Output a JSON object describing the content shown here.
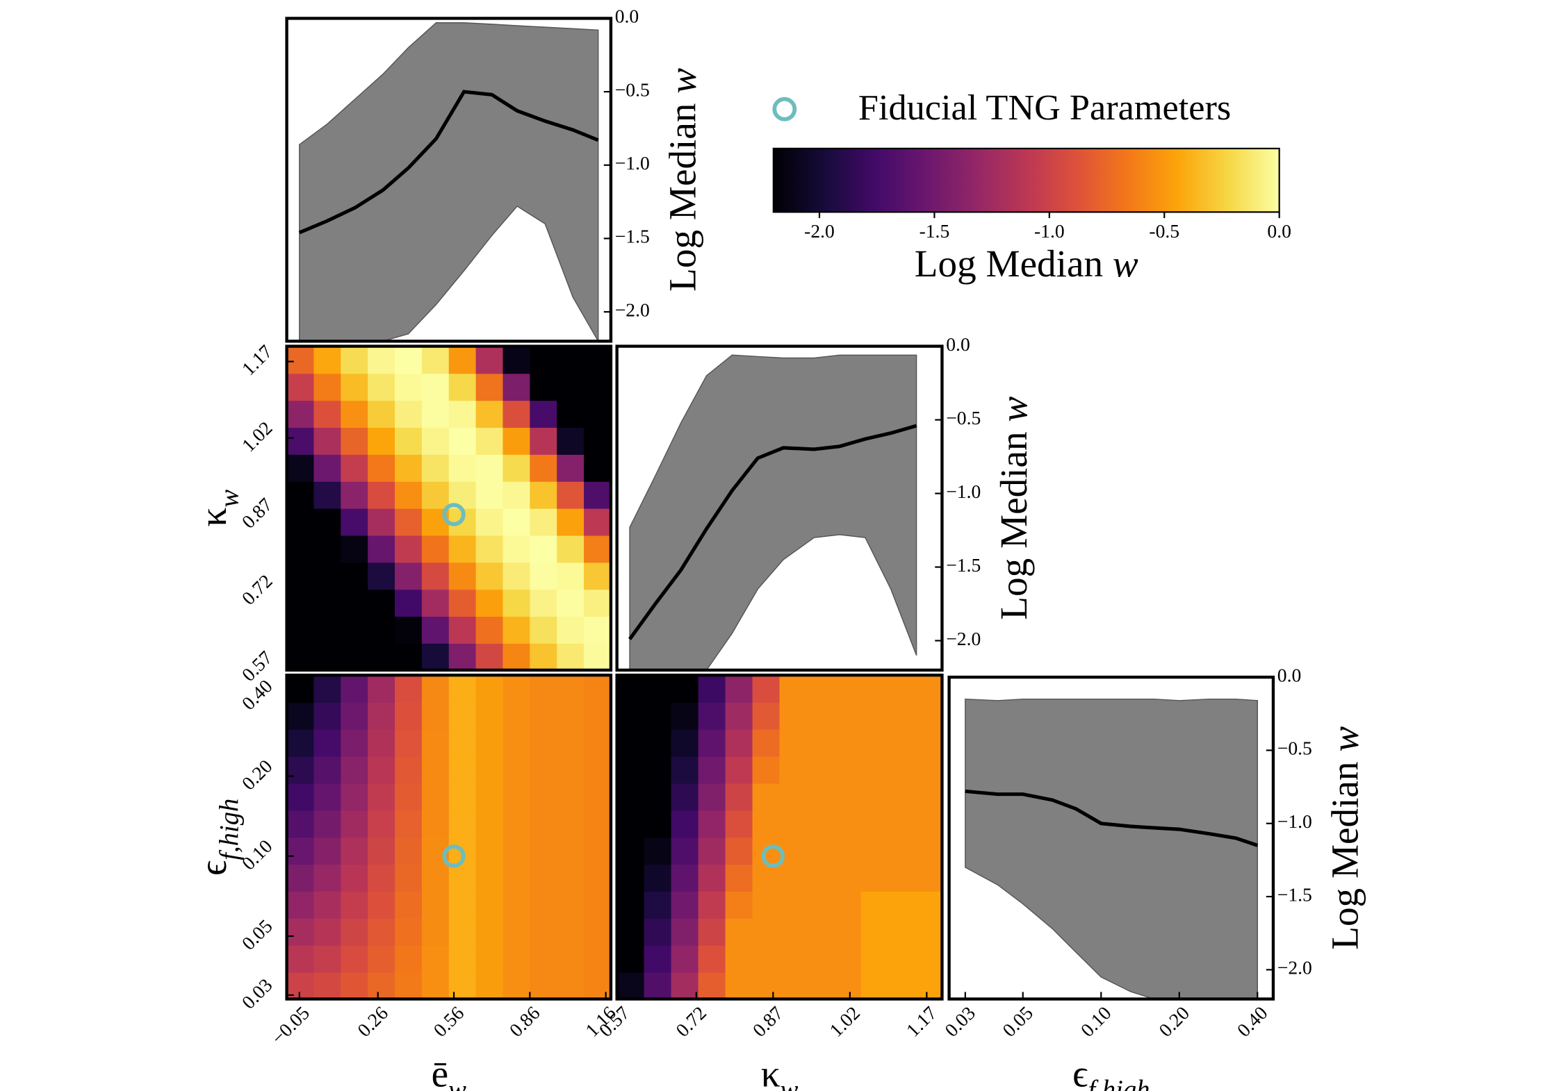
{
  "chart_data": [
    {
      "type": "line",
      "x": [
        -0.05,
        0.06,
        0.17,
        0.28,
        0.38,
        0.49,
        0.6,
        0.71,
        0.81,
        0.92,
        1.03,
        1.13
      ],
      "median": [
        -1.46,
        -1.38,
        -1.29,
        -1.17,
        -1.02,
        -0.82,
        -0.5,
        -0.52,
        -0.63,
        -0.7,
        -0.76,
        -0.83
      ],
      "upper": [
        -0.86,
        -0.72,
        -0.55,
        -0.38,
        -0.2,
        -0.03,
        -0.03,
        -0.04,
        -0.05,
        -0.06,
        -0.07,
        -0.08
      ],
      "lower": [
        -2.2,
        -2.2,
        -2.2,
        -2.2,
        -2.15,
        -1.95,
        -1.72,
        -1.48,
        -1.28,
        -1.4,
        -1.9,
        -2.2
      ],
      "xlim": [
        -0.1,
        1.18
      ],
      "ylim": [
        -2.2,
        0
      ],
      "yticks": [
        {
          "value": 0,
          "label": "0.0"
        },
        {
          "value": -0.5,
          "label": "−0.5"
        },
        {
          "value": -1,
          "label": "−1.0"
        },
        {
          "value": -1.5,
          "label": "−1.5"
        },
        {
          "value": -2,
          "label": "−2.0"
        }
      ],
      "ylabel": "Log Median w",
      "line_color": "#000000",
      "band_color": "#808080"
    },
    {
      "type": "heatmap",
      "cmap": "inferno",
      "xlim": [
        -0.1,
        1.18
      ],
      "ylim": [
        0.565,
        1.2
      ],
      "yticks": [
        0.57,
        0.72,
        0.87,
        1.02,
        1.17
      ],
      "ylabel": "κw",
      "z": [
        [
          -2.2,
          -2.2,
          -2.2,
          -2.2,
          -2.2,
          -1.98,
          -1.43,
          -0.96,
          -0.59,
          -0.31,
          -0.12,
          -0.02
        ],
        [
          -2.2,
          -2.2,
          -2.2,
          -2.2,
          -2.17,
          -1.59,
          -1.1,
          -0.7,
          -0.38,
          -0.17,
          -0.04,
          -0.01
        ],
        [
          -2.2,
          -2.2,
          -2.2,
          -2.2,
          -1.76,
          -1.24,
          -0.81,
          -0.47,
          -0.22,
          -0.07,
          -0.01,
          -0.08
        ],
        [
          -2.2,
          -2.2,
          -2.2,
          -1.95,
          -1.4,
          -0.94,
          -0.57,
          -0.29,
          -0.11,
          -0.01,
          -0.03,
          -0.29
        ],
        [
          -2.2,
          -2.2,
          -2.14,
          -1.56,
          -1.07,
          -0.68,
          -0.37,
          -0.16,
          -0.03,
          0,
          -0.18,
          -0.63
        ],
        [
          -2.2,
          -2.2,
          -1.73,
          -1.22,
          -0.79,
          -0.46,
          -0.22,
          -0.06,
          0,
          -0.09,
          -0.46,
          -1.09
        ],
        [
          -2.2,
          -1.92,
          -1.37,
          -0.92,
          -0.55,
          -0.28,
          -0.1,
          -0.01,
          -0.04,
          -0.31,
          -0.86,
          -1.69
        ],
        [
          -2.11,
          -1.53,
          -1.05,
          -0.66,
          -0.36,
          -0.15,
          -0.03,
          -0.01,
          -0.2,
          -0.66,
          -1.4,
          -2.2
        ],
        [
          -1.71,
          -1.19,
          -0.77,
          -0.44,
          -0.2,
          -0.06,
          0,
          -0.11,
          -0.48,
          -1.13,
          -2.06,
          -2.2
        ],
        [
          -1.35,
          -0.89,
          -0.54,
          -0.27,
          -0.09,
          -0.01,
          -0.04,
          -0.33,
          -0.9,
          -1.73,
          -2.2,
          -2.2
        ],
        [
          -1.03,
          -0.64,
          -0.34,
          -0.14,
          -0.03,
          -0.01,
          -0.21,
          -0.69,
          -1.44,
          -2.2,
          -2.2,
          -2.2
        ],
        [
          -0.75,
          -0.43,
          -0.19,
          -0.05,
          0,
          -0.12,
          -0.51,
          -1.18,
          -2.12,
          -2.2,
          -2.2,
          -2.2
        ]
      ],
      "fiducial": [
        0.56,
        0.87
      ]
    },
    {
      "type": "line",
      "x": [
        0.59,
        0.64,
        0.69,
        0.74,
        0.79,
        0.84,
        0.89,
        0.95,
        1.0,
        1.05,
        1.1,
        1.15
      ],
      "median": [
        -1.99,
        -1.75,
        -1.52,
        -1.24,
        -0.98,
        -0.76,
        -0.69,
        -0.7,
        -0.68,
        -0.63,
        -0.59,
        -0.54
      ],
      "upper": [
        -1.23,
        -0.88,
        -0.52,
        -0.2,
        -0.06,
        -0.07,
        -0.08,
        -0.08,
        -0.06,
        -0.06,
        -0.06,
        -0.06
      ],
      "lower": [
        -2.2,
        -2.2,
        -2.2,
        -2.2,
        -1.95,
        -1.65,
        -1.45,
        -1.3,
        -1.28,
        -1.3,
        -1.65,
        -2.1
      ],
      "xlim": [
        0.565,
        1.2
      ],
      "ylim": [
        -2.2,
        0
      ],
      "yticks": [
        {
          "value": 0,
          "label": "0.0"
        },
        {
          "value": -0.5,
          "label": "−0.5"
        },
        {
          "value": -1,
          "label": "−1.0"
        },
        {
          "value": -1.5,
          "label": "−1.5"
        },
        {
          "value": -2,
          "label": "−2.0"
        }
      ],
      "ylabel": "Log Median w",
      "line_color": "#000000",
      "band_color": "#808080"
    },
    {
      "type": "heatmap",
      "cmap": "inferno",
      "xlim": [
        -0.1,
        1.18
      ],
      "ylim": [
        0.029,
        0.48
      ],
      "yscale": "log",
      "xticks": [
        {
          "value": -0.05,
          "label": "−0.05"
        },
        0.26,
        0.56,
        0.86,
        1.16
      ],
      "yticks": [
        0.03,
        0.05,
        {
          "value": 0.1,
          "label": "0.10"
        },
        {
          "value": 0.2,
          "label": "0.20"
        },
        {
          "value": 0.4,
          "label": "0.40"
        }
      ],
      "xlabel": "ēw",
      "ylabel": "ϵf,high",
      "z": [
        [
          -1.0,
          -0.95,
          -0.85,
          -0.75,
          -0.65,
          -0.55,
          -0.4,
          -0.48,
          -0.55,
          -0.58,
          -0.58,
          -0.6
        ],
        [
          -1.11,
          -1.04,
          -0.92,
          -0.8,
          -0.67,
          -0.55,
          -0.4,
          -0.48,
          -0.55,
          -0.58,
          -0.58,
          -0.6
        ],
        [
          -1.22,
          -1.13,
          -0.98,
          -0.84,
          -0.7,
          -0.56,
          -0.4,
          -0.48,
          -0.55,
          -0.58,
          -0.58,
          -0.6
        ],
        [
          -1.33,
          -1.21,
          -1.05,
          -0.89,
          -0.72,
          -0.56,
          -0.4,
          -0.48,
          -0.55,
          -0.58,
          -0.58,
          -0.6
        ],
        [
          -1.44,
          -1.3,
          -1.12,
          -0.93,
          -0.75,
          -0.56,
          -0.4,
          -0.48,
          -0.55,
          -0.58,
          -0.58,
          -0.6
        ],
        [
          -1.55,
          -1.39,
          -1.18,
          -0.98,
          -0.77,
          -0.56,
          -0.4,
          -0.48,
          -0.55,
          -0.58,
          -0.58,
          -0.6
        ],
        [
          -1.66,
          -1.48,
          -1.25,
          -1.02,
          -0.79,
          -0.57,
          -0.4,
          -0.48,
          -0.55,
          -0.58,
          -0.58,
          -0.6
        ],
        [
          -1.77,
          -1.57,
          -1.32,
          -1.07,
          -0.82,
          -0.57,
          -0.4,
          -0.48,
          -0.55,
          -0.58,
          -0.58,
          -0.6
        ],
        [
          -1.87,
          -1.65,
          -1.38,
          -1.11,
          -0.84,
          -0.57,
          -0.4,
          -0.48,
          -0.55,
          -0.58,
          -0.58,
          -0.6
        ],
        [
          -1.98,
          -1.74,
          -1.45,
          -1.16,
          -0.87,
          -0.57,
          -0.4,
          -0.48,
          -0.55,
          -0.58,
          -0.58,
          -0.6
        ],
        [
          -2.09,
          -1.83,
          -1.52,
          -1.2,
          -0.89,
          -0.58,
          -0.4,
          -0.48,
          -0.55,
          -0.58,
          -0.58,
          -0.6
        ],
        [
          -2.2,
          -1.92,
          -1.58,
          -1.25,
          -0.91,
          -0.58,
          -0.4,
          -0.48,
          -0.55,
          -0.58,
          -0.58,
          -0.6
        ]
      ],
      "fiducial": [
        0.56,
        0.1
      ]
    },
    {
      "type": "heatmap",
      "cmap": "inferno",
      "xlim": [
        0.565,
        1.2
      ],
      "ylim": [
        0.029,
        0.48
      ],
      "yscale": "log",
      "xticks": [
        0.57,
        0.72,
        0.87,
        1.02,
        1.17
      ],
      "xlabel": "κw",
      "z": [
        [
          -2.11,
          -1.67,
          -1.23,
          -0.8,
          -0.55,
          -0.55,
          -0.55,
          -0.55,
          -0.55,
          -0.45,
          -0.45,
          -0.45
        ],
        [
          -2.2,
          -1.76,
          -1.33,
          -0.89,
          -0.55,
          -0.55,
          -0.55,
          -0.55,
          -0.55,
          -0.45,
          -0.45,
          -0.45
        ],
        [
          -2.2,
          -1.85,
          -1.42,
          -0.99,
          -0.55,
          -0.55,
          -0.55,
          -0.55,
          -0.55,
          -0.45,
          -0.45,
          -0.45
        ],
        [
          -2.2,
          -1.94,
          -1.51,
          -1.07,
          -0.63,
          -0.55,
          -0.55,
          -0.55,
          -0.55,
          -0.45,
          -0.45,
          -0.45
        ],
        [
          -2.2,
          -2.04,
          -1.6,
          -1.16,
          -0.72,
          -0.55,
          -0.55,
          -0.55,
          -0.55,
          -0.55,
          -0.55,
          -0.55
        ],
        [
          -2.2,
          -2.13,
          -1.69,
          -1.25,
          -0.81,
          -0.55,
          -0.55,
          -0.55,
          -0.55,
          -0.55,
          -0.55,
          -0.55
        ],
        [
          -2.2,
          -2.2,
          -1.77,
          -1.33,
          -0.9,
          -0.55,
          -0.55,
          -0.55,
          -0.55,
          -0.55,
          -0.55,
          -0.55
        ],
        [
          -2.2,
          -2.2,
          -1.86,
          -1.42,
          -0.99,
          -0.55,
          -0.55,
          -0.55,
          -0.55,
          -0.55,
          -0.55,
          -0.55
        ],
        [
          -2.2,
          -2.2,
          -1.95,
          -1.51,
          -1.08,
          -0.64,
          -0.55,
          -0.55,
          -0.55,
          -0.55,
          -0.55,
          -0.55
        ],
        [
          -2.2,
          -2.2,
          -2.04,
          -1.6,
          -1.18,
          -0.73,
          -0.55,
          -0.55,
          -0.55,
          -0.55,
          -0.55,
          -0.55
        ],
        [
          -2.2,
          -2.2,
          -2.13,
          -1.7,
          -1.26,
          -0.83,
          -0.55,
          -0.55,
          -0.55,
          -0.55,
          -0.55,
          -0.55
        ],
        [
          -2.2,
          -2.2,
          -2.2,
          -1.79,
          -1.35,
          -0.91,
          -0.55,
          -0.55,
          -0.55,
          -0.55,
          -0.55,
          -0.55
        ]
      ],
      "fiducial": [
        0.87,
        0.1
      ]
    },
    {
      "type": "line",
      "xscale": "log",
      "x": [
        0.03,
        0.04,
        0.05,
        0.065,
        0.08,
        0.1,
        0.13,
        0.16,
        0.2,
        0.26,
        0.33,
        0.4
      ],
      "median": [
        -0.78,
        -0.8,
        -0.8,
        -0.84,
        -0.9,
        -1.0,
        -1.02,
        -1.03,
        -1.04,
        -1.07,
        -1.1,
        -1.15
      ],
      "upper": [
        -0.15,
        -0.16,
        -0.15,
        -0.15,
        -0.15,
        -0.15,
        -0.15,
        -0.15,
        -0.16,
        -0.15,
        -0.15,
        -0.16
      ],
      "lower": [
        -1.3,
        -1.42,
        -1.55,
        -1.72,
        -1.88,
        -2.05,
        -2.15,
        -2.2,
        -2.2,
        -2.2,
        -2.2,
        -2.2
      ],
      "xlim": [
        0.026,
        0.46
      ],
      "ylim": [
        -2.2,
        0
      ],
      "xticks": [
        0.03,
        0.05,
        {
          "value": 0.1,
          "label": "0.10"
        },
        {
          "value": 0.2,
          "label": "0.20"
        },
        {
          "value": 0.4,
          "label": "0.40"
        }
      ],
      "yticks": [
        {
          "value": 0,
          "label": "0.0"
        },
        {
          "value": -0.5,
          "label": "−0.5"
        },
        {
          "value": -1,
          "label": "−1.0"
        },
        {
          "value": -1.5,
          "label": "−1.5"
        },
        {
          "value": -2,
          "label": "−2.0"
        }
      ],
      "xlabel": "ϵf,high",
      "ylabel": "Log Median w",
      "line_color": "#000000",
      "band_color": "#808080"
    }
  ],
  "colorbar": {
    "label": "Log Median w",
    "lim": [
      -2.2,
      0
    ],
    "ticks": [
      {
        "value": -2,
        "label": "-2.0"
      },
      {
        "value": -1.5,
        "label": "-1.5"
      },
      {
        "value": -1,
        "label": "-1.0"
      },
      {
        "value": -0.5,
        "label": "-0.5"
      },
      {
        "value": 0,
        "label": "0.0"
      }
    ]
  },
  "legend": {
    "label": "Fiducial TNG Parameters",
    "color": "#6dbdbd"
  }
}
